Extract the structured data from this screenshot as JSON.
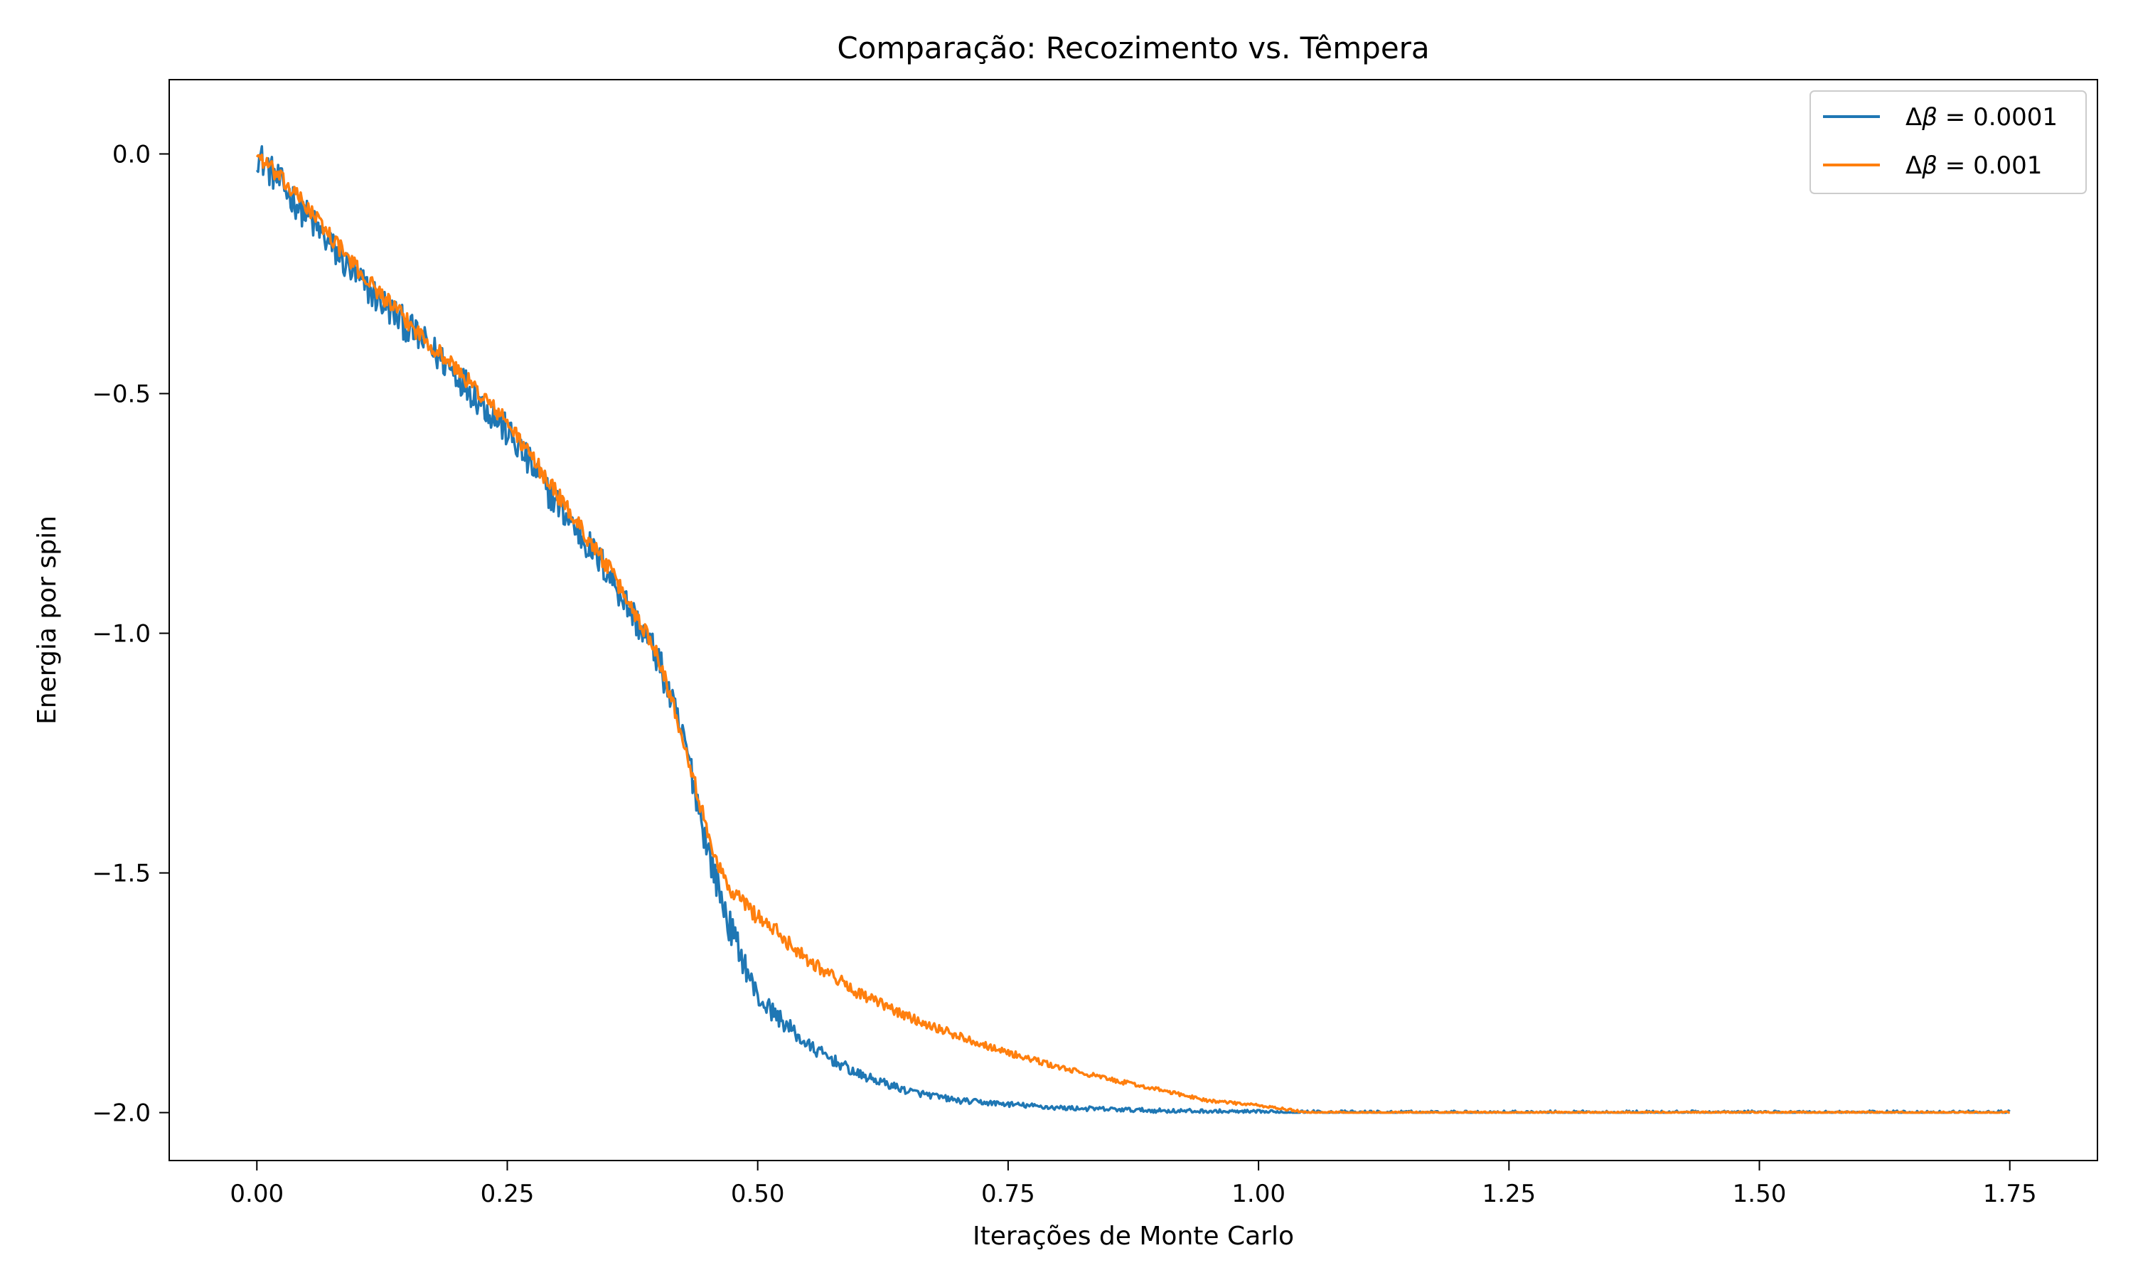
{
  "chart_data": {
    "type": "line",
    "title": "Comparação: Recozimento vs. Têmpera",
    "xlabel": "Iterações de Monte Carlo",
    "ylabel": "Energia por spin",
    "xlim": [
      -0.0875,
      1.8375
    ],
    "ylim": [
      -2.1,
      0.155
    ],
    "xticks": [
      0.0,
      0.25,
      0.5,
      0.75,
      1.0,
      1.25,
      1.5,
      1.75
    ],
    "xtick_labels": [
      "0.00",
      "0.25",
      "0.50",
      "0.75",
      "1.00",
      "1.25",
      "1.50",
      "1.75"
    ],
    "yticks": [
      0.0,
      -0.5,
      -1.0,
      -1.5,
      -2.0
    ],
    "ytick_labels": [
      "0.0",
      "−0.5",
      "−1.0",
      "−1.5",
      "−2.0"
    ],
    "x_scale_label": "1e6",
    "grid": false,
    "legend_position": "top-right",
    "series": [
      {
        "name": "Δβ = 0.0001",
        "legend_symbol": "Δ",
        "legend_beta": "β",
        "legend_rest": " = 0.0001",
        "color": "#1f77b4",
        "noise": 0.035,
        "x": [
          0.0,
          0.05,
          0.1,
          0.15,
          0.2,
          0.25,
          0.3,
          0.35,
          0.4,
          0.43,
          0.45,
          0.47,
          0.5,
          0.55,
          0.6,
          0.65,
          0.7,
          0.8,
          0.9,
          1.0,
          1.1,
          1.2,
          1.3,
          1.4,
          1.5,
          1.6,
          1.7,
          1.75
        ],
        "y": [
          0.0,
          -0.13,
          -0.26,
          -0.36,
          -0.46,
          -0.58,
          -0.73,
          -0.87,
          -1.05,
          -1.25,
          -1.45,
          -1.6,
          -1.76,
          -1.86,
          -1.92,
          -1.955,
          -1.975,
          -1.99,
          -1.996,
          -1.999,
          -2.0,
          -2.0,
          -2.0,
          -2.0,
          -2.0,
          -2.0,
          -2.0,
          -2.0
        ]
      },
      {
        "name": "Δβ = 0.001",
        "legend_symbol": "Δ",
        "legend_beta": "β",
        "legend_rest": " = 0.001",
        "color": "#ff7f0e",
        "noise": 0.018,
        "x": [
          0.0,
          0.05,
          0.1,
          0.15,
          0.2,
          0.25,
          0.3,
          0.35,
          0.4,
          0.43,
          0.45,
          0.47,
          0.5,
          0.55,
          0.6,
          0.65,
          0.7,
          0.75,
          0.8,
          0.85,
          0.9,
          0.95,
          1.0,
          1.05,
          1.1,
          1.2,
          1.3,
          1.4,
          1.5,
          1.6,
          1.7,
          1.75
        ],
        "y": [
          0.0,
          -0.11,
          -0.24,
          -0.35,
          -0.45,
          -0.56,
          -0.71,
          -0.86,
          -1.04,
          -1.25,
          -1.42,
          -1.53,
          -1.59,
          -1.68,
          -1.75,
          -1.8,
          -1.84,
          -1.875,
          -1.905,
          -1.93,
          -1.952,
          -1.975,
          -1.985,
          -2.0,
          -2.0,
          -2.0,
          -2.0,
          -2.0,
          -2.0,
          -2.0,
          -2.0,
          -2.0
        ]
      }
    ]
  }
}
